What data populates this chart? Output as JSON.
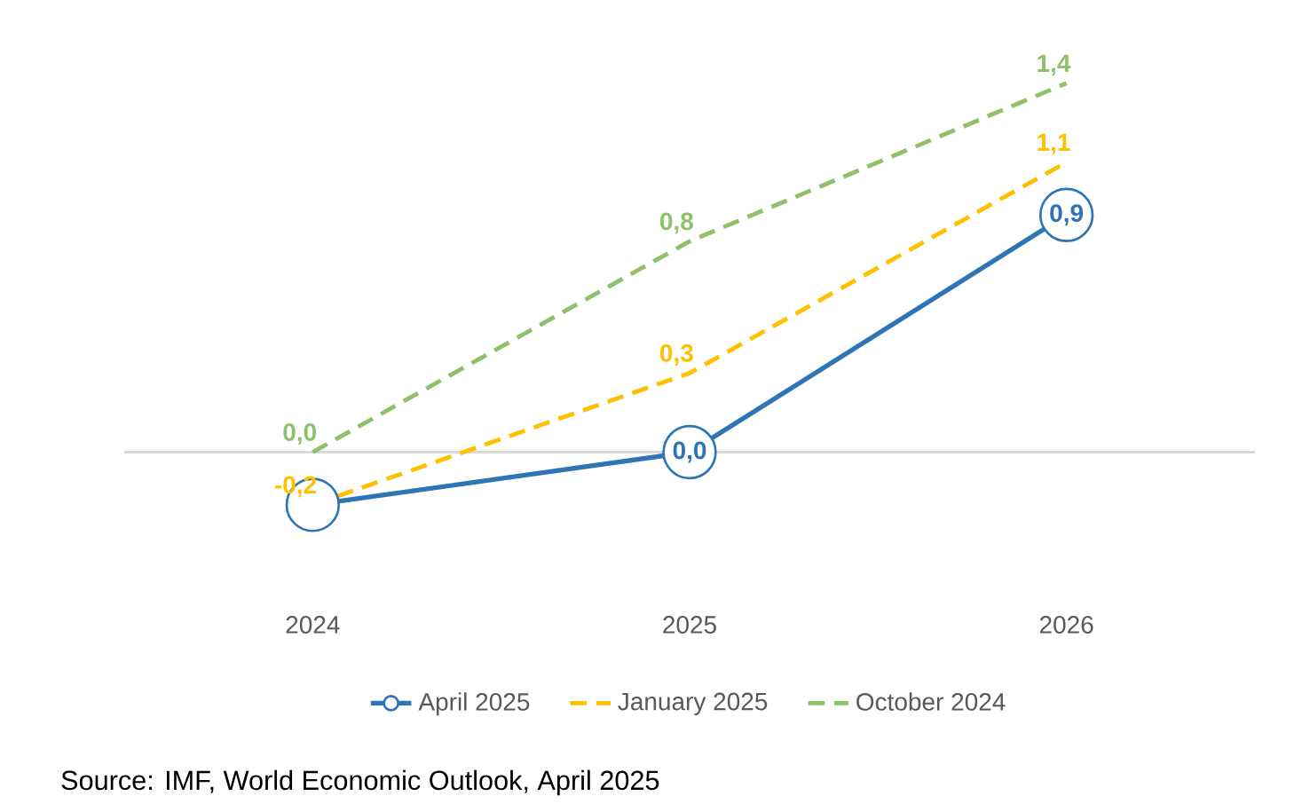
{
  "chart_data": {
    "type": "line",
    "categories": [
      "2024",
      "2025",
      "2026"
    ],
    "series": [
      {
        "name": "April 2025",
        "color": "#2e75b6",
        "values": [
          -0.2,
          0.0,
          0.9
        ],
        "marker": "circle",
        "line_style": "solid",
        "value_labels": [
          null,
          "0,0",
          "0,9"
        ]
      },
      {
        "name": "January 2025",
        "color": "#ffc000",
        "values": [
          -0.2,
          0.3,
          1.1
        ],
        "marker": "none",
        "line_style": "dashed",
        "value_labels": [
          "-0,2",
          "0,3",
          "1,1"
        ]
      },
      {
        "name": "October 2024",
        "color": "#8fc16a",
        "values": [
          0.0,
          0.8,
          1.4
        ],
        "marker": "none",
        "line_style": "dashed",
        "value_labels": [
          "0,0",
          "0,8",
          "1,4"
        ]
      }
    ],
    "tick_labels": "x",
    "grid": false,
    "legend": "bottom",
    "ref_lines": [
      {
        "axis": "y",
        "value": 0,
        "color": "#d9d9d9"
      }
    ],
    "annotations": [
      "Source: IMF, World Economic Outlook, April 2025"
    ]
  }
}
